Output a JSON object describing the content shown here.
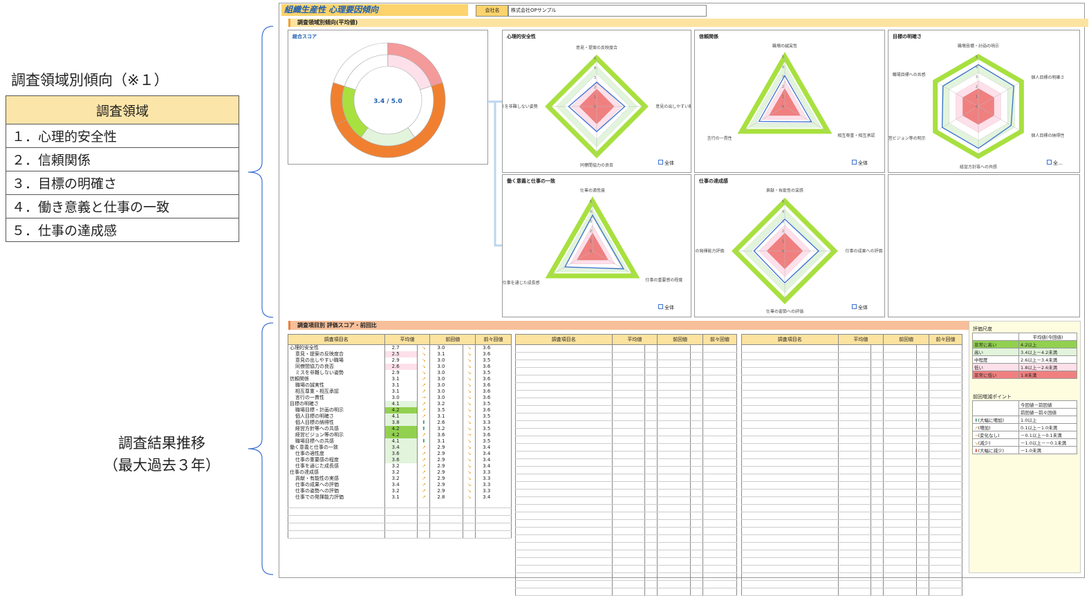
{
  "left": {
    "domain_trend_title": "調査領域別傾向（※１）",
    "domain_table_header": "調査領域",
    "domains": [
      "１．心理的安全性",
      "２．信頼関係",
      "３．目標の明確さ",
      "４．働き意義と仕事の一致",
      "５．仕事の達成感"
    ],
    "trend_label_line1": "調査結果推移",
    "trend_label_line2": "（最大過去３年）"
  },
  "header": {
    "title": "組織生産性 心理要因傾向",
    "company_label": "会社名",
    "company_value": "株式会社OPサンプル"
  },
  "section1": {
    "title": "調査領域別傾向(平均値)"
  },
  "overall": {
    "title": "総合スコア",
    "score_text": "3.4 / 5.0",
    "score": 3.4,
    "max": 5.0
  },
  "radars": [
    {
      "title": "心理的安全性",
      "labels": [
        "意見・提案の反映度合",
        "意見の出しやすい職場",
        "同僚間協力の良否",
        "ミスを非難しない姿勢"
      ],
      "values": [
        2.5,
        2.9,
        2.6,
        2.9
      ],
      "legend": "全体"
    },
    {
      "title": "信頼関係",
      "labels": [
        "職場の誠実性",
        "相互尊重・相互承認",
        "言行の一貫性"
      ],
      "values": [
        3.1,
        3.1,
        3.0
      ],
      "legend": "全体"
    },
    {
      "title": "目標の明確さ",
      "labels": [
        "職場目標・計画の明示",
        "個人目標の明確さ",
        "個人目標の納得性",
        "経営方針等への共感",
        "経営ビジョン等の明示",
        "職場目標への共感"
      ],
      "values": [
        4.2,
        4.1,
        3.8,
        4.2,
        4.2,
        4.1
      ],
      "legend": "全…"
    },
    {
      "title": "働く意義と仕事の一致",
      "labels": [
        "仕事の適性度",
        "仕事の重要感の程度",
        "仕事を通じた成長感"
      ],
      "values": [
        3.6,
        3.6,
        3.2
      ],
      "legend": "全体"
    },
    {
      "title": "仕事の達成感",
      "labels": [
        "貢献・有能性の実感",
        "仕事の成果への評価",
        "仕事の姿勢への評価",
        "仕事での発揮能力評価"
      ],
      "values": [
        3.2,
        3.4,
        3.2,
        3.1
      ],
      "legend": "全体"
    }
  ],
  "radar_ticks": [
    "5",
    "4",
    "3",
    "2",
    "1",
    "0"
  ],
  "section2": {
    "title": "調査項目別 評価スコア・前回比"
  },
  "table_headers": [
    "調査項目名",
    "平均値",
    "前回値",
    "前々回値"
  ],
  "rows": [
    {
      "name": "心理的安全性",
      "indent": false,
      "avg": "2.7",
      "prev": "3.0",
      "prev2": "3.6",
      "a1": "↘",
      "a2": "↘",
      "band": ""
    },
    {
      "name": "意見・提案の反映度合",
      "indent": true,
      "avg": "2.5",
      "prev": "3.1",
      "prev2": "3.6",
      "a1": "↘",
      "a2": "↘",
      "band": "low"
    },
    {
      "name": "意見の出しやすい職場",
      "indent": true,
      "avg": "2.9",
      "prev": "3.0",
      "prev2": "3.5",
      "a1": "↘",
      "a2": "↘",
      "band": ""
    },
    {
      "name": "同僚間協力の良否",
      "indent": true,
      "avg": "2.6",
      "prev": "3.0",
      "prev2": "3.6",
      "a1": "↘",
      "a2": "↘",
      "band": "low"
    },
    {
      "name": "ミスを非難しない姿勢",
      "indent": true,
      "avg": "2.9",
      "prev": "3.0",
      "prev2": "3.5",
      "a1": "↘",
      "a2": "↘",
      "band": ""
    },
    {
      "name": "信頼関係",
      "indent": false,
      "avg": "3.1",
      "prev": "3.0",
      "prev2": "3.6",
      "a1": "↗",
      "a2": "↘",
      "band": ""
    },
    {
      "name": "職場の誠実性",
      "indent": true,
      "avg": "3.1",
      "prev": "3.0",
      "prev2": "3.6",
      "a1": "↗",
      "a2": "↘",
      "band": ""
    },
    {
      "name": "相互尊重・相互承認",
      "indent": true,
      "avg": "3.1",
      "prev": "3.0",
      "prev2": "3.6",
      "a1": "↗",
      "a2": "↘",
      "band": ""
    },
    {
      "name": "言行の一貫性",
      "indent": true,
      "avg": "3.0",
      "prev": "3.0",
      "prev2": "3.6",
      "a1": "→",
      "a2": "↘",
      "band": ""
    },
    {
      "name": "目標の明確さ",
      "indent": false,
      "avg": "4.1",
      "prev": "3.2",
      "prev2": "3.5",
      "a1": "↗",
      "a2": "↘",
      "band": "high"
    },
    {
      "name": "職場目標・計画の明示",
      "indent": true,
      "avg": "4.2",
      "prev": "3.5",
      "prev2": "3.6",
      "a1": "↗",
      "a2": "↘",
      "band": "vhigh"
    },
    {
      "name": "個人目標の明確さ",
      "indent": true,
      "avg": "4.1",
      "prev": "3.1",
      "prev2": "3.5",
      "a1": "↗",
      "a2": "↘",
      "band": "high"
    },
    {
      "name": "個人目標の納得性",
      "indent": true,
      "avg": "3.8",
      "prev": "2.6",
      "prev2": "3.3",
      "a1": "⬆",
      "a2": "↘",
      "band": "high"
    },
    {
      "name": "経営方針等への共感",
      "indent": true,
      "avg": "4.2",
      "prev": "3.2",
      "prev2": "3.5",
      "a1": "⬆",
      "a2": "↘",
      "band": "vhigh"
    },
    {
      "name": "経営ビジョン等の明示",
      "indent": true,
      "avg": "4.2",
      "prev": "3.6",
      "prev2": "3.6",
      "a1": "↗",
      "a2": "→",
      "band": "vhigh"
    },
    {
      "name": "職場目標への共感",
      "indent": true,
      "avg": "4.1",
      "prev": "3.1",
      "prev2": "3.5",
      "a1": "⬆",
      "a2": "↘",
      "band": "high"
    },
    {
      "name": "働く意義と仕事の一致",
      "indent": false,
      "avg": "3.4",
      "prev": "2.9",
      "prev2": "3.4",
      "a1": "↗",
      "a2": "↘",
      "band": "high"
    },
    {
      "name": "仕事の適性度",
      "indent": true,
      "avg": "3.6",
      "prev": "2.9",
      "prev2": "3.4",
      "a1": "↗",
      "a2": "↘",
      "band": "high"
    },
    {
      "name": "仕事の重要感の程度",
      "indent": true,
      "avg": "3.6",
      "prev": "2.9",
      "prev2": "3.4",
      "a1": "↗",
      "a2": "↘",
      "band": "high"
    },
    {
      "name": "仕事を通じた成長感",
      "indent": true,
      "avg": "3.2",
      "prev": "2.9",
      "prev2": "3.4",
      "a1": "↗",
      "a2": "↘",
      "band": ""
    },
    {
      "name": "仕事の達成感",
      "indent": false,
      "avg": "3.2",
      "prev": "2.9",
      "prev2": "3.3",
      "a1": "↗",
      "a2": "↘",
      "band": ""
    },
    {
      "name": "貢献・有能性の実感",
      "indent": true,
      "avg": "3.2",
      "prev": "2.9",
      "prev2": "3.3",
      "a1": "↗",
      "a2": "↘",
      "band": ""
    },
    {
      "name": "仕事の成果への評価",
      "indent": true,
      "avg": "3.4",
      "prev": "2.9",
      "prev2": "3.3",
      "a1": "↗",
      "a2": "↘",
      "band": ""
    },
    {
      "name": "仕事の姿勢への評価",
      "indent": true,
      "avg": "3.2",
      "prev": "2.9",
      "prev2": "3.3",
      "a1": "↗",
      "a2": "↘",
      "band": ""
    },
    {
      "name": "仕事での発揮能力評価",
      "indent": true,
      "avg": "3.1",
      "prev": "2.8",
      "prev2": "3.4",
      "a1": "↗",
      "a2": "↘",
      "band": ""
    }
  ],
  "scale": {
    "title": "評価尺度",
    "col_header": "平均値(今回値)",
    "levels": [
      {
        "name": "非常に高い",
        "range": "4.2以上",
        "color": "#92d050"
      },
      {
        "name": "高い",
        "range": "3.4以上－4.2未満",
        "color": "#e2f4dc"
      },
      {
        "name": "中程度",
        "range": "2.6以上－3.4未満",
        "color": "#ffffff"
      },
      {
        "name": "低い",
        "range": "1.8以上－2.6未満",
        "color": "#fde0ea"
      },
      {
        "name": "非常に低い",
        "range": "1.8未満",
        "color": "#f08080"
      }
    ]
  },
  "change": {
    "title": "前回増減ポイント",
    "col_header1": "今回値－前回値",
    "col_header2": "前回値－前々回値",
    "levels": [
      {
        "icon": "⬆",
        "name": "(大幅に増加)",
        "range": "1.0以上",
        "color": "#3a9a6a"
      },
      {
        "icon": "↗",
        "name": "(増加)",
        "range": "0.1以上－1.0未満",
        "color": "#e0a030"
      },
      {
        "icon": "→",
        "name": "(変化なし)",
        "range": "－0.1以上－0.1未満",
        "color": "#e0a030"
      },
      {
        "icon": "↘",
        "name": "(減少)",
        "range": "－1.0以上－－0.1未満",
        "color": "#e0a030"
      },
      {
        "icon": "⬇",
        "name": "(大幅に減少)",
        "range": "－1.0未満",
        "color": "#d04020"
      }
    ]
  }
}
